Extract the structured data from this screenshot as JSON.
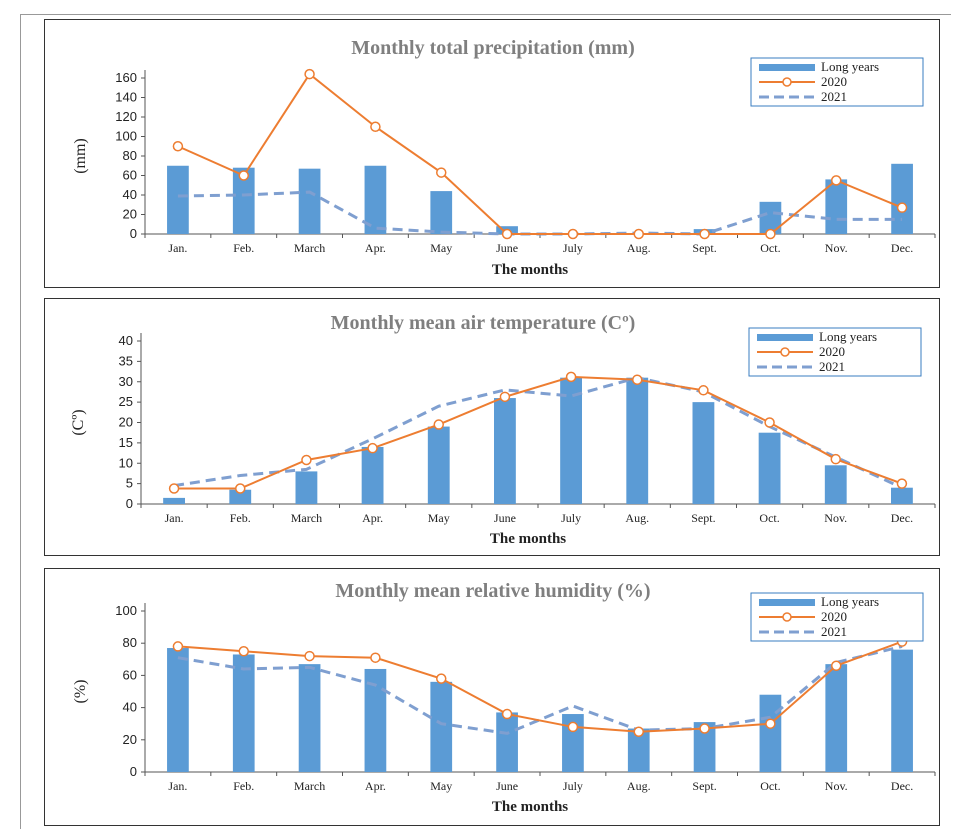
{
  "chart_data": [
    {
      "type": "bar",
      "title": "Monthly total precipitation (mm)",
      "xlabel": "The months",
      "ylabel": "(mm)",
      "ylim": [
        0,
        160
      ],
      "yticks": [
        0,
        20,
        40,
        60,
        80,
        100,
        120,
        140,
        160
      ],
      "categories": [
        "Jan.",
        "Feb.",
        "March",
        "Apr.",
        "May",
        "June",
        "July",
        "Aug.",
        "Sept.",
        "Oct.",
        "Nov.",
        "Dec."
      ],
      "series": [
        {
          "name": "Long years",
          "kind": "bar",
          "color": "#5b9bd5",
          "values": [
            70,
            68,
            67,
            70,
            44,
            8,
            0,
            0,
            5,
            33,
            56,
            72
          ]
        },
        {
          "name": "2020",
          "kind": "line-marker",
          "color": "#ed7d31",
          "values": [
            90,
            60,
            164,
            110,
            63,
            0,
            0,
            0,
            0,
            0,
            55,
            27
          ]
        },
        {
          "name": "2021",
          "kind": "dashed",
          "color": "#7f9fd0",
          "values": [
            39,
            40,
            43,
            6,
            2,
            0,
            0,
            1,
            0,
            22,
            15,
            15
          ]
        }
      ],
      "legend_position": "top-right",
      "grid": false
    },
    {
      "type": "bar",
      "title": "Monthly mean air temperature  (Cº)",
      "xlabel": "The months",
      "ylabel": "(Cº)",
      "ylim": [
        0,
        40
      ],
      "yticks": [
        0,
        5,
        10,
        15,
        20,
        25,
        30,
        35,
        40
      ],
      "categories": [
        "Jan.",
        "Feb.",
        "March",
        "Apr.",
        "May",
        "June",
        "July",
        "Aug.",
        "Sept.",
        "Oct.",
        "Nov.",
        "Dec."
      ],
      "series": [
        {
          "name": "Long years",
          "kind": "bar",
          "color": "#5b9bd5",
          "values": [
            1.5,
            3.5,
            8,
            14,
            19,
            26,
            31,
            31,
            25,
            17.5,
            9.5,
            4
          ]
        },
        {
          "name": "2020",
          "kind": "line-marker",
          "color": "#ed7d31",
          "values": [
            3.8,
            3.8,
            10.8,
            13.7,
            19.5,
            26.3,
            31.2,
            30.5,
            27.9,
            20,
            11,
            5
          ]
        },
        {
          "name": "2021",
          "kind": "dashed",
          "color": "#7f9fd0",
          "values": [
            4.5,
            7,
            8.5,
            16,
            24,
            28,
            26.5,
            31,
            27.5,
            19,
            11.5,
            4
          ]
        }
      ],
      "legend_position": "top-right",
      "grid": false
    },
    {
      "type": "bar",
      "title": "Monthly mean relative humidity (%)",
      "xlabel": "The months",
      "ylabel": "(%)",
      "ylim": [
        0,
        100
      ],
      "yticks": [
        0,
        20,
        40,
        60,
        80,
        100
      ],
      "categories": [
        "Jan.",
        "Feb.",
        "March",
        "Apr.",
        "May",
        "June",
        "July",
        "Aug.",
        "Sept.",
        "Oct.",
        "Nov.",
        "Dec."
      ],
      "series": [
        {
          "name": "Long years",
          "kind": "bar",
          "color": "#5b9bd5",
          "values": [
            77,
            73,
            67,
            64,
            56,
            37,
            36,
            27,
            31,
            48,
            67,
            76
          ]
        },
        {
          "name": "2020",
          "kind": "line-marker",
          "color": "#ed7d31",
          "values": [
            78,
            75,
            72,
            71,
            58,
            36,
            28,
            25,
            27,
            30,
            66,
            81
          ]
        },
        {
          "name": "2021",
          "kind": "dashed",
          "color": "#7f9fd0",
          "values": [
            71,
            64,
            65,
            54,
            30,
            24,
            41,
            26,
            27,
            34,
            68,
            78
          ]
        }
      ],
      "legend_position": "top-right",
      "grid": false
    }
  ]
}
